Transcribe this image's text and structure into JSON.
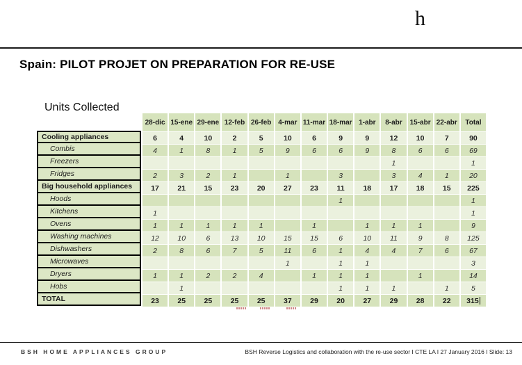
{
  "slide": {
    "logo_glyph": "h",
    "title": "Spain: PILOT PROJET ON PREPARATION FOR RE-USE",
    "table_heading": "Units Collected"
  },
  "table": {
    "columns": [
      "28-dic",
      "15-ene",
      "29-ene",
      "12-feb",
      "26-feb",
      "4-mar",
      "11-mar",
      "18-mar",
      "1-abr",
      "8-abr",
      "15-abr",
      "22-abr",
      "Total"
    ],
    "rows": [
      {
        "label": "Cooling appliances",
        "style": "category",
        "values": [
          "6",
          "4",
          "10",
          "2",
          "5",
          "10",
          "6",
          "9",
          "9",
          "12",
          "10",
          "7",
          "90"
        ]
      },
      {
        "label": "Combis",
        "style": "sub",
        "values": [
          "4",
          "1",
          "8",
          "1",
          "5",
          "9",
          "6",
          "6",
          "9",
          "8",
          "6",
          "6",
          "69"
        ]
      },
      {
        "label": "Freezers",
        "style": "sub",
        "values": [
          "",
          "",
          "",
          "",
          "",
          "",
          "",
          "",
          "",
          "1",
          "",
          "",
          "1"
        ]
      },
      {
        "label": "Fridges",
        "style": "sub",
        "values": [
          "2",
          "3",
          "2",
          "1",
          "",
          "1",
          "",
          "3",
          "",
          "3",
          "4",
          "1",
          "20"
        ]
      },
      {
        "label": "Big household appliances",
        "style": "category",
        "values": [
          "17",
          "21",
          "15",
          "23",
          "20",
          "27",
          "23",
          "11",
          "18",
          "17",
          "18",
          "15",
          "225"
        ]
      },
      {
        "label": "Hoods",
        "style": "sub",
        "values": [
          "",
          "",
          "",
          "",
          "",
          "",
          "",
          "1",
          "",
          "",
          "",
          "",
          "1"
        ]
      },
      {
        "label": "Kitchens",
        "style": "sub",
        "values": [
          "1",
          "",
          "",
          "",
          "",
          "",
          "",
          "",
          "",
          "",
          "",
          "",
          "1"
        ]
      },
      {
        "label": "Ovens",
        "style": "sub",
        "values": [
          "1",
          "1",
          "1",
          "1",
          "1",
          "",
          "1",
          "",
          "1",
          "1",
          "1",
          "",
          "9"
        ]
      },
      {
        "label": "Washing machines",
        "style": "sub",
        "values": [
          "12",
          "10",
          "6",
          "13",
          "10",
          "15",
          "15",
          "6",
          "10",
          "11",
          "9",
          "8",
          "125"
        ]
      },
      {
        "label": "Dishwashers",
        "style": "sub",
        "values": [
          "2",
          "8",
          "6",
          "7",
          "5",
          "11",
          "6",
          "1",
          "4",
          "4",
          "7",
          "6",
          "67"
        ]
      },
      {
        "label": "Microwaves",
        "style": "sub",
        "values": [
          "",
          "",
          "",
          "",
          "",
          "1",
          "",
          "1",
          "1",
          "",
          "",
          "",
          "3"
        ]
      },
      {
        "label": "Dryers",
        "style": "sub",
        "values": [
          "1",
          "1",
          "2",
          "2",
          "4",
          "",
          "1",
          "1",
          "1",
          "",
          "1",
          "",
          "14"
        ]
      },
      {
        "label": "Hobs",
        "style": "sub",
        "values": [
          "",
          "1",
          "",
          "",
          "",
          "",
          "",
          "1",
          "1",
          "1",
          "",
          "1",
          "5"
        ]
      },
      {
        "label": "TOTAL",
        "style": "total",
        "values": [
          "23",
          "25",
          "25",
          "25",
          "25",
          "37",
          "29",
          "20",
          "27",
          "29",
          "28",
          "22",
          "315"
        ]
      }
    ]
  },
  "footer": {
    "left": "BSH HOME APPLIANCES GROUP",
    "right": "BSH Reverse Logistics and collaboration with the re-use sector I CTE LA I 27 January 2016 I Slide: 13"
  },
  "colors": {
    "row_light": "#ebf1de",
    "row_dark": "#d6e3bc",
    "label_green": "#dce7c5",
    "annotation_red": "#c06060"
  }
}
